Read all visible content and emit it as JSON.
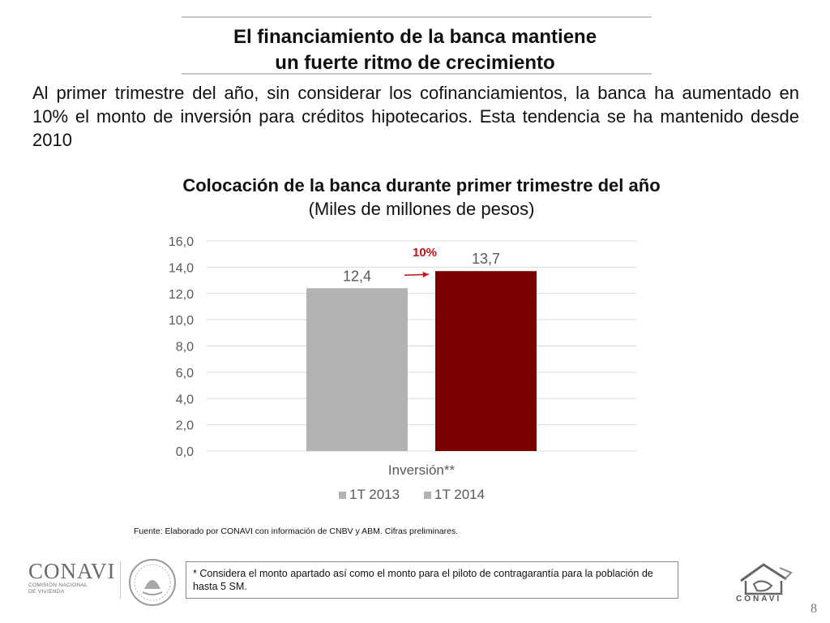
{
  "slide": {
    "title_line1": "El financiamiento de la banca mantiene",
    "title_line2": "un fuerte ritmo de crecimiento",
    "intro": "Al primer trimestre del año, sin considerar los cofinanciamientos, la banca ha aumentado en 10% el monto de inversión para créditos hipotecarios. Esta tendencia se ha mantenido desde 2010",
    "source": "Fuente: Elaborado por CONAVI con información de CNBV y ABM. Cifras preliminares.",
    "footnote": "* Considera el monto apartado así como el monto para el piloto de contragarantía para la población de hasta 5 SM.",
    "page_number": "8",
    "logo": {
      "wordmark": "CONAVI",
      "subtitle_line1": "COMISIÓN NACIONAL",
      "subtitle_line2": "DE VIVIENDA",
      "house_wordmark": "CONAVI"
    }
  },
  "chart_data": {
    "type": "bar",
    "title": "Colocación de la banca durante primer trimestre del año",
    "subtitle": "(Miles de millones de pesos)",
    "categories": [
      "Inversión**"
    ],
    "series": [
      {
        "name": "1T 2013",
        "values": [
          12.4
        ],
        "labels": [
          "12,4"
        ],
        "color": "#b3b3b3"
      },
      {
        "name": "1T 2014",
        "values": [
          13.7
        ],
        "labels": [
          "13,7"
        ],
        "color": "#7a0000"
      }
    ],
    "ylim": [
      0,
      16
    ],
    "yticks": [
      0,
      2,
      4,
      6,
      8,
      10,
      12,
      14,
      16
    ],
    "ytick_labels": [
      "0,0",
      "2,0",
      "4,0",
      "6,0",
      "8,0",
      "10,0",
      "12,0",
      "14,0",
      "16,0"
    ],
    "grid": true,
    "legend_position": "bottom",
    "annotation": {
      "text": "10%",
      "color": "#c0121b"
    }
  }
}
